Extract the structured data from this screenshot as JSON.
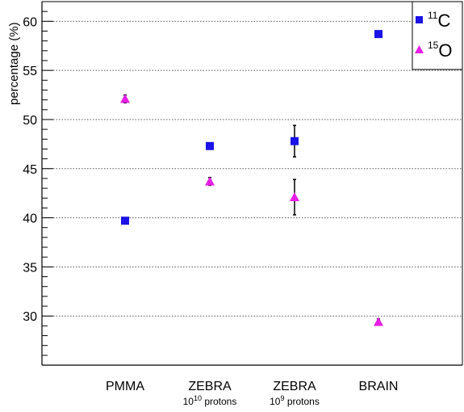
{
  "chart_data": {
    "type": "scatter",
    "ylabel": "percentage (%)",
    "xlabel": "",
    "ylim": [
      25,
      62
    ],
    "y_ticks": [
      30,
      35,
      40,
      45,
      50,
      55,
      60
    ],
    "y_tick_labels": [
      "30",
      "35",
      "40",
      "45",
      "50",
      "55",
      "60"
    ],
    "grid": "horizontal dotted",
    "legend_position": "top-right",
    "categories": [
      {
        "label": "PMMA",
        "sublabel": ""
      },
      {
        "label": "ZEBRA",
        "sublabel": "10",
        "sublabel_sup": "10",
        "sublabel_rest": " protons"
      },
      {
        "label": "ZEBRA",
        "sublabel": "10",
        "sublabel_sup": "9",
        "sublabel_rest": " protons"
      },
      {
        "label": "BRAIN",
        "sublabel": ""
      }
    ],
    "series": [
      {
        "name": "C",
        "name_sup": "11",
        "marker": "square",
        "color": "#1a12e6",
        "values": [
          39.7,
          47.3,
          47.8,
          58.7
        ],
        "errors": [
          0.0,
          0.0,
          1.6,
          0.0
        ]
      },
      {
        "name": "O",
        "name_sup": "15",
        "marker": "triangle",
        "color": "#e61ee6",
        "values": [
          52.1,
          43.7,
          42.1,
          29.4
        ],
        "errors": [
          0.4,
          0.4,
          1.8,
          0.3
        ]
      }
    ]
  }
}
